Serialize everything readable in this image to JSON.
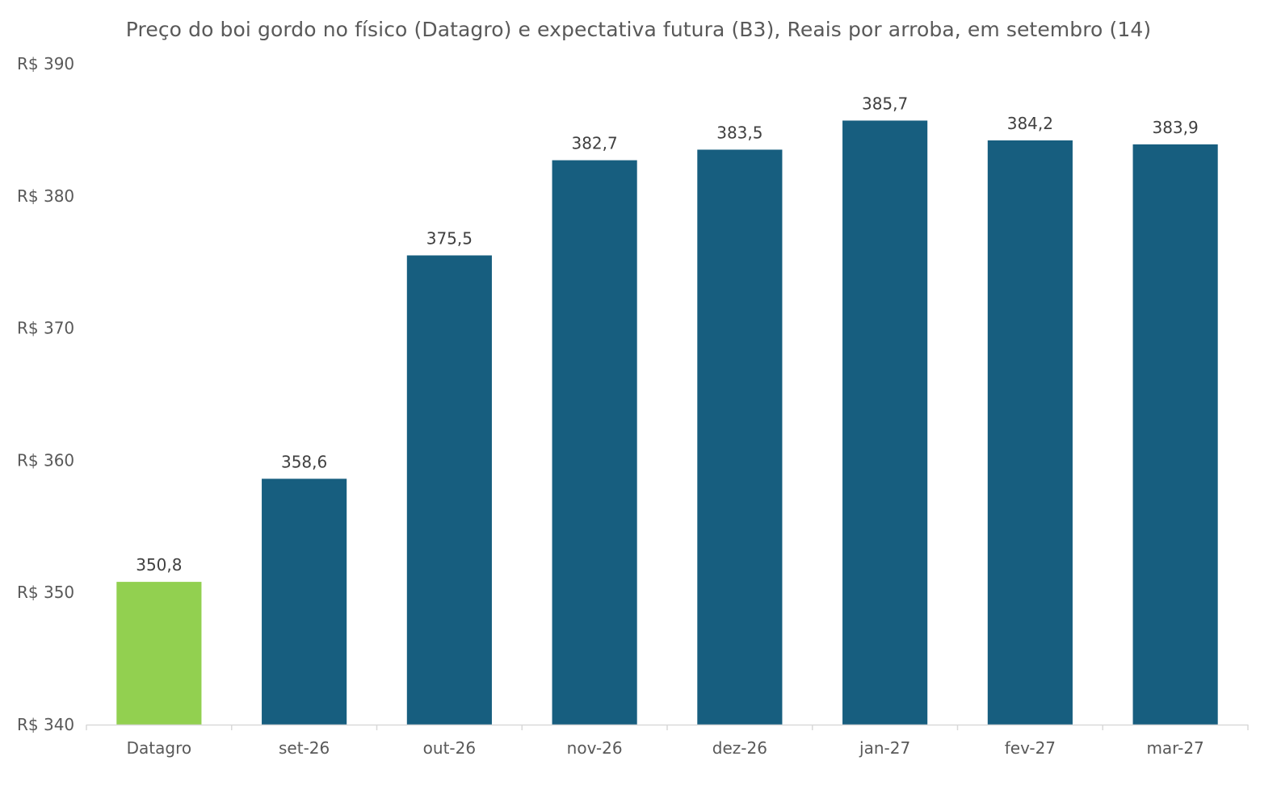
{
  "chart_data": {
    "type": "bar",
    "title": "Preço do boi gordo no físico (Datagro)  e expectativa futura (B3), Reais por arroba, em setembro (14)",
    "categories": [
      "Datagro",
      "set-26",
      "out-26",
      "nov-26",
      "dez-26",
      "jan-27",
      "fev-27",
      "mar-27"
    ],
    "values": [
      350.8,
      358.6,
      375.5,
      382.7,
      383.5,
      385.7,
      384.2,
      383.9
    ],
    "data_labels": [
      "350,8",
      "358,6",
      "375,5",
      "382,7",
      "383,5",
      "385,7",
      "384,2",
      "383,9"
    ],
    "ylim": [
      340,
      390
    ],
    "yticks": [
      340,
      350,
      360,
      370,
      380,
      390
    ],
    "ytick_labels": [
      "R$ 340",
      "R$ 350",
      "R$ 360",
      "R$ 370",
      "R$ 380",
      "R$ 390"
    ],
    "xlabel": "",
    "ylabel": "",
    "grid": false,
    "legend": "none",
    "colors": {
      "highlight": "#92d050",
      "bar": "#175e7f",
      "axis": "#d9d9d9",
      "text": "#595959",
      "label": "#404040"
    }
  }
}
